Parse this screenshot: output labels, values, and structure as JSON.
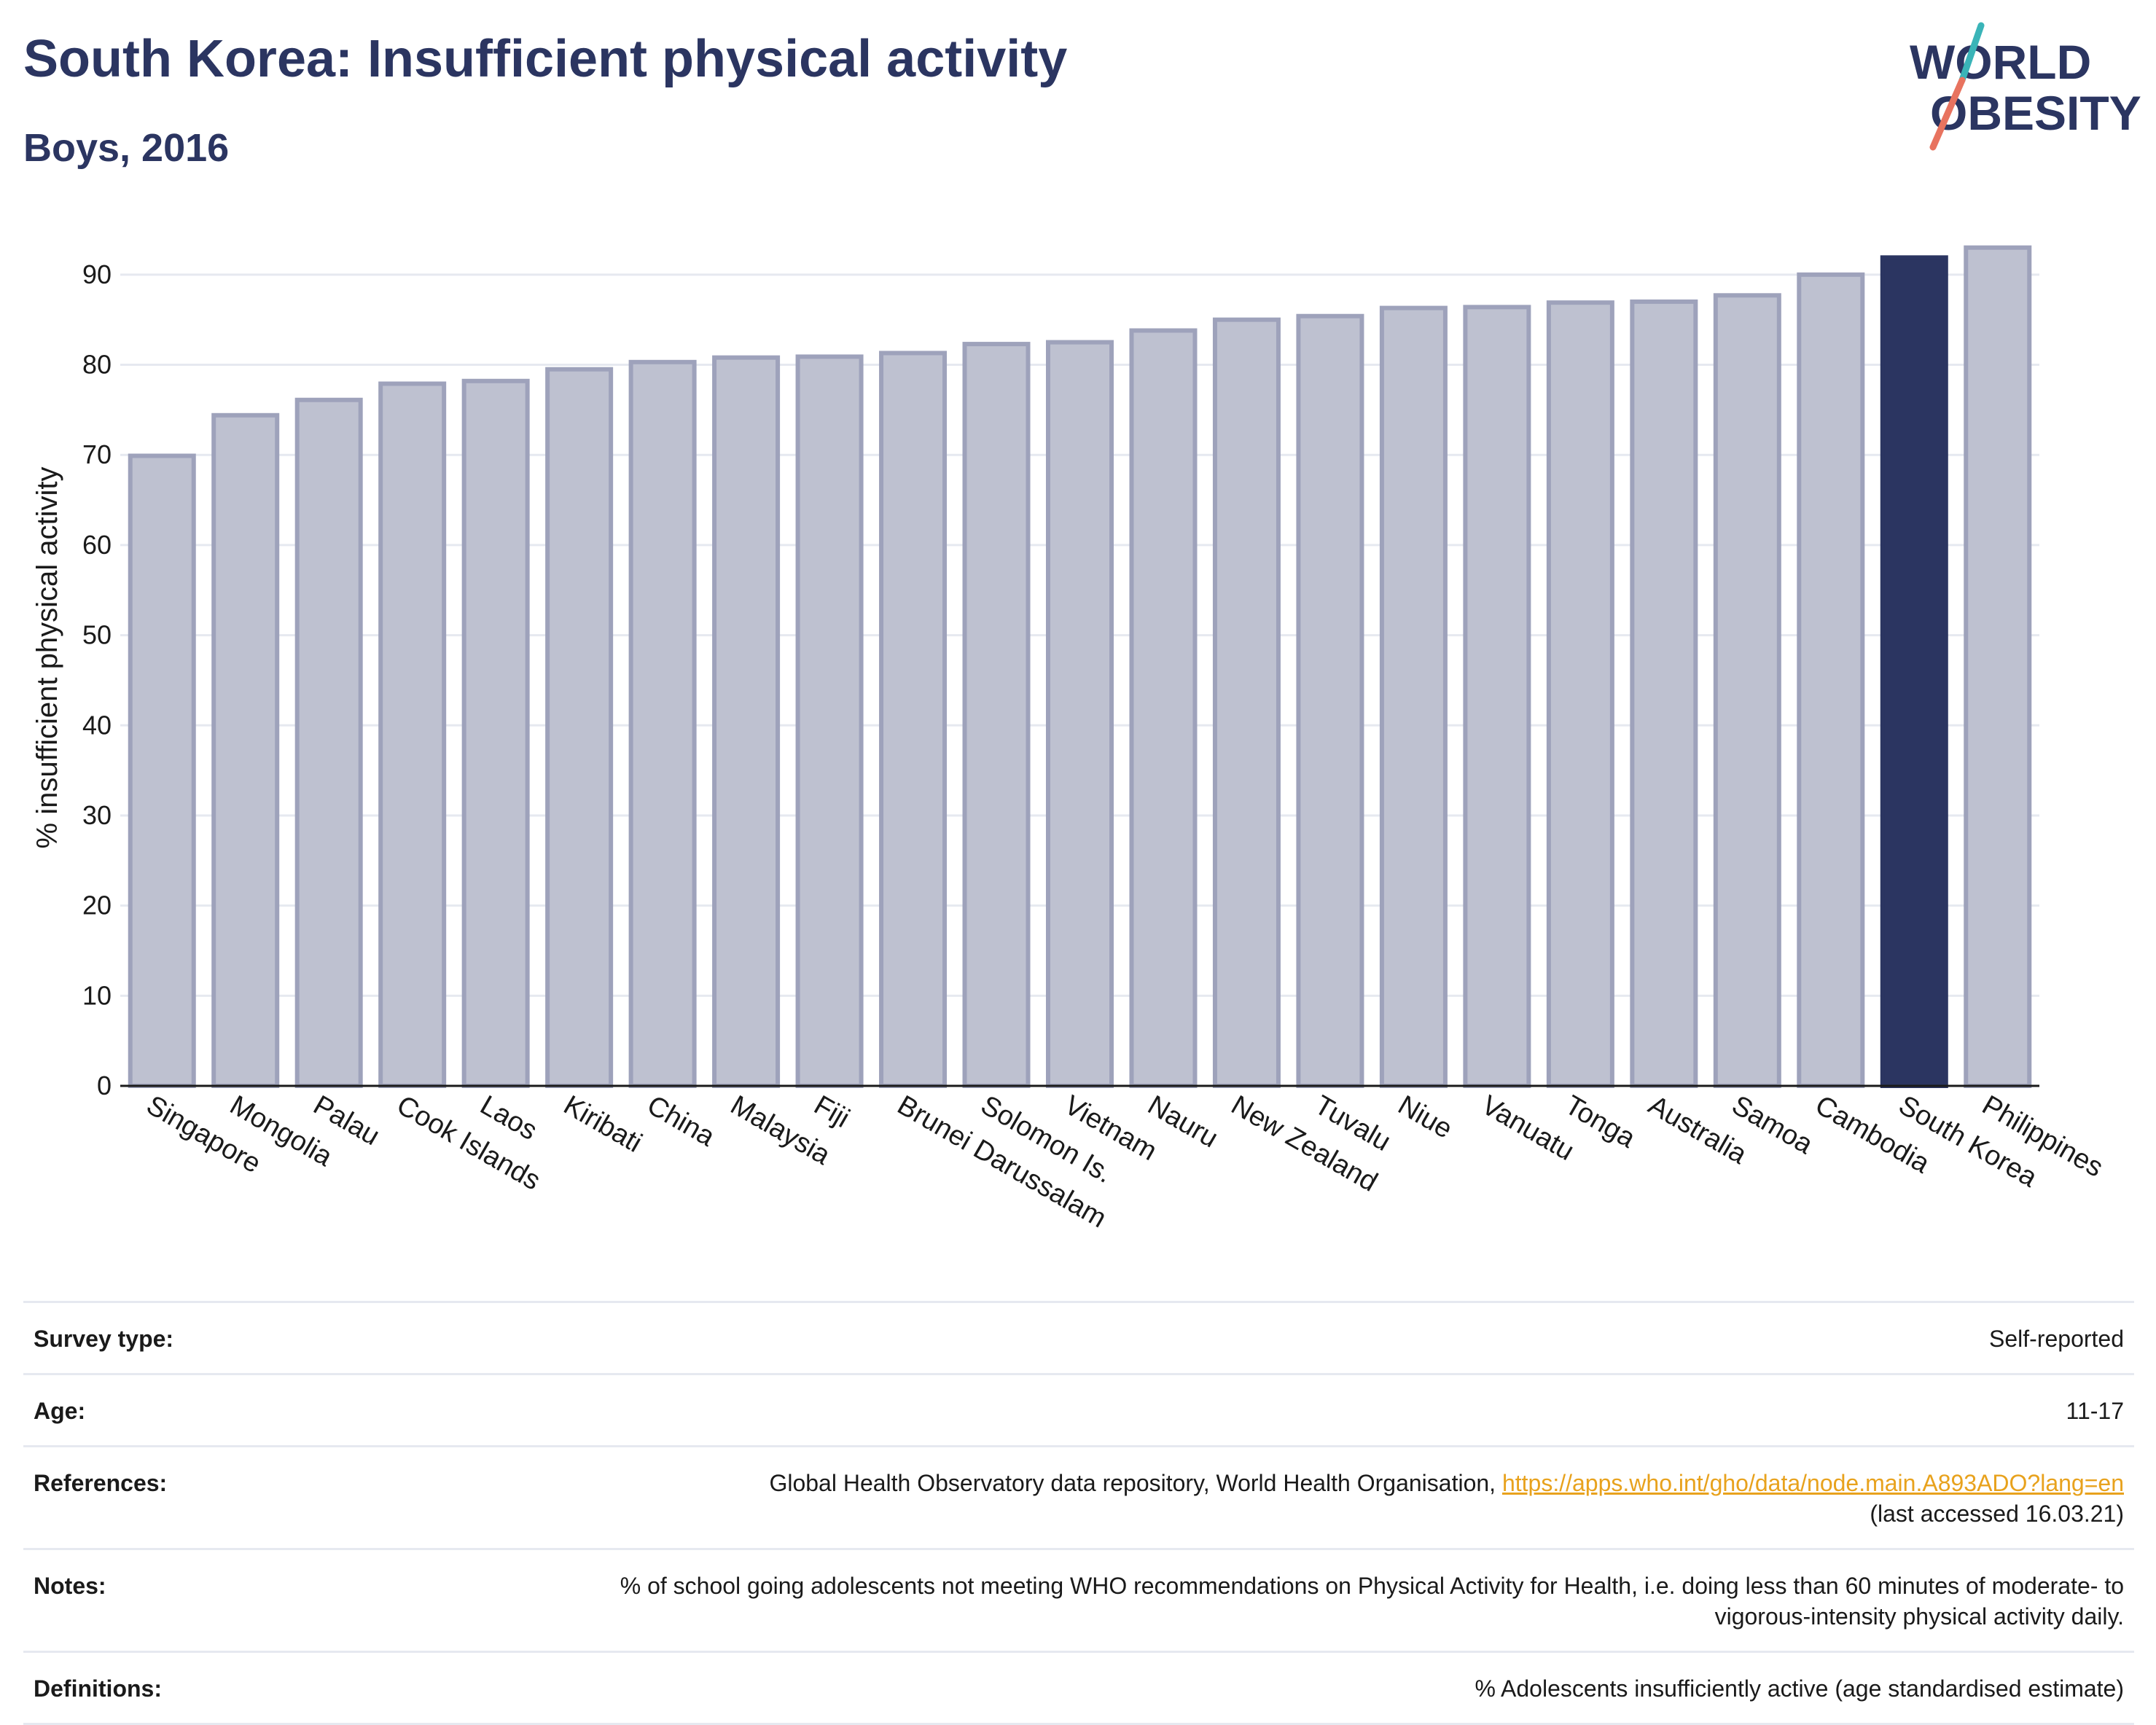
{
  "header": {
    "title": "South Korea: Insufficient physical activity",
    "subtitle": "Boys, 2016"
  },
  "logo": {
    "line1": "WORLD",
    "line2": "OBESITY",
    "colors": {
      "text": "#2b3561",
      "slash_teal": "#3ab4b8",
      "slash_coral": "#e8735f"
    }
  },
  "colors": {
    "bar_default": "#bec1d0",
    "bar_default_stroke": "#9ea2bb",
    "bar_highlight": "#2b3561",
    "grid": "#e6e9f0",
    "axis": "#1a1a1a",
    "link": "#e8a21d"
  },
  "chart_data": {
    "type": "bar",
    "title": "",
    "xlabel": "",
    "ylabel": "% insufficient physical activity",
    "ylim": [
      0,
      95
    ],
    "yticks": [
      0,
      10,
      20,
      30,
      40,
      50,
      60,
      70,
      80,
      90
    ],
    "grid": true,
    "highlight": "South Korea",
    "categories": [
      "Singapore",
      "Mongolia",
      "Palau",
      "Cook Islands",
      "Laos",
      "Kiribati",
      "China",
      "Malaysia",
      "Fiji",
      "Brunei Darussalam",
      "Solomon Is.",
      "Vietnam",
      "Nauru",
      "New Zealand",
      "Tuvalu",
      "Niue",
      "Vanuatu",
      "Tonga",
      "Australia",
      "Samoa",
      "Cambodia",
      "South Korea",
      "Philippines"
    ],
    "values": [
      69.9,
      74.4,
      76.1,
      77.9,
      78.2,
      79.5,
      80.3,
      80.8,
      80.9,
      81.3,
      82.3,
      82.5,
      83.8,
      85.0,
      85.4,
      86.3,
      86.4,
      86.9,
      87.0,
      87.7,
      90.0,
      91.9,
      93.0
    ]
  },
  "info": {
    "survey_type": {
      "label": "Survey type:",
      "value": "Self-reported"
    },
    "age": {
      "label": "Age:",
      "value": "11-17"
    },
    "references": {
      "label": "References:",
      "text": "Global Health Observatory data repository, World Health Organisation, ",
      "link": "https://apps.who.int/gho/data/node.main.A893ADO?lang=en",
      "accessed": "(last accessed 16.03.21)"
    },
    "notes": {
      "label": "Notes:",
      "value": "% of school going adolescents not meeting WHO recommendations on Physical Activity for Health, i.e. doing less than 60 minutes of moderate- to vigorous-intensity physical activity daily."
    },
    "definitions": {
      "label": "Definitions:",
      "value": "% Adolescents insufficiently active (age standardised estimate)"
    }
  }
}
